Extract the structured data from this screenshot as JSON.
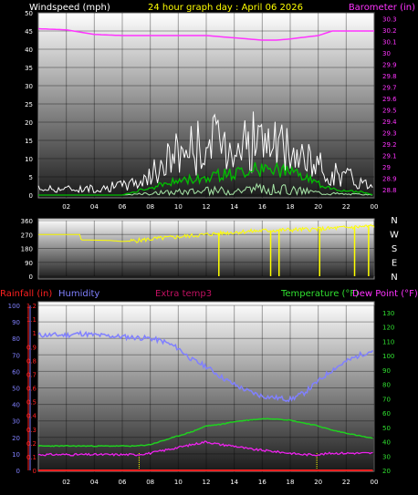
{
  "chart_data": [
    {
      "type": "line",
      "title": "24 hour graph day : April 06 2026",
      "ylabel_left": "Windspeed (mph)",
      "ylabel_right": "Barometer (in)",
      "x_ticks": [
        "02",
        "04",
        "06",
        "08",
        "10",
        "12",
        "14",
        "16",
        "18",
        "20",
        "22",
        "00"
      ],
      "y_left_ticks": [
        "0",
        "5",
        "10",
        "15",
        "20",
        "25",
        "30",
        "35",
        "40",
        "45",
        "50"
      ],
      "y_left_range": [
        0,
        50
      ],
      "y_right_ticks": [
        "28.8",
        "28.9",
        "29",
        "29.1",
        "29.2",
        "29.3",
        "29.4",
        "29.5",
        "29.6",
        "29.7",
        "29.8",
        "29.9",
        "30",
        "30.1",
        "30.2",
        "30.3"
      ],
      "y_right_range": [
        28.75,
        30.35
      ],
      "colors": {
        "gust": "#ffffff",
        "wind": "#00c000",
        "wind_low": "#a8e8a8",
        "barometer": "#ff33ff",
        "label_left": "#ffffff",
        "label_right": "#ff33ff",
        "title": "#ffff00"
      },
      "series": [
        {
          "key": "barometer",
          "axis": "right",
          "hours": [
            0,
            2,
            4,
            6,
            8,
            10,
            12,
            14,
            16,
            17,
            18,
            20,
            21,
            22,
            24
          ],
          "values": [
            30.21,
            30.2,
            30.16,
            30.15,
            30.15,
            30.15,
            30.15,
            30.13,
            30.11,
            30.11,
            30.12,
            30.15,
            30.19,
            30.19,
            30.19
          ]
        },
        {
          "key": "gust",
          "axis": "left",
          "hours": [
            0,
            2,
            4,
            6,
            7,
            8,
            9,
            10,
            12,
            14,
            15,
            16,
            17,
            18,
            19,
            20,
            21,
            22,
            23,
            24
          ],
          "values": [
            2,
            2,
            2,
            3,
            4,
            6,
            10,
            14,
            16,
            17,
            17,
            17,
            15,
            13,
            11,
            9,
            7,
            6,
            4,
            3
          ]
        },
        {
          "key": "wind",
          "axis": "left",
          "hours": [
            0,
            4,
            6,
            7,
            8,
            9,
            10,
            12,
            14,
            15,
            16,
            17,
            18,
            19,
            20,
            21,
            22,
            23,
            24
          ],
          "values": [
            0,
            0,
            0,
            1,
            2,
            3,
            4,
            5,
            6,
            7,
            7,
            7,
            6,
            5,
            3,
            2,
            1,
            1,
            0
          ]
        }
      ]
    },
    {
      "type": "line",
      "right_labels": [
        "N",
        "W",
        "S",
        "E",
        "N"
      ],
      "y_ticks": [
        "0",
        "90",
        "180",
        "270",
        "360"
      ],
      "y_range": [
        0,
        360
      ],
      "colors": {
        "direction": "#ffff00"
      },
      "series": [
        {
          "key": "direction",
          "hours": [
            0,
            3,
            3.05,
            5,
            6,
            7,
            8,
            10,
            12,
            14,
            16,
            18,
            20,
            22,
            23,
            24
          ],
          "values": [
            270,
            270,
            235,
            232,
            225,
            230,
            240,
            255,
            270,
            285,
            295,
            300,
            305,
            315,
            320,
            325
          ]
        }
      ],
      "drops": [
        {
          "hour": 12.9,
          "value": 0
        },
        {
          "hour": 16.6,
          "value": 0
        },
        {
          "hour": 17.2,
          "value": 0
        },
        {
          "hour": 20.1,
          "value": 0
        },
        {
          "hour": 22.6,
          "value": 0
        },
        {
          "hour": 23.6,
          "value": 0
        }
      ]
    },
    {
      "type": "line",
      "legend": [
        "Rainfall (in)",
        "Humidity",
        "Extra temp3",
        "Temperature (°F)",
        "Dew Point (°F)"
      ],
      "legend_colors": [
        "#ff2020",
        "#8080ff",
        "#c01060",
        "#30e030",
        "#ff33ff"
      ],
      "x_ticks": [
        "02",
        "04",
        "06",
        "08",
        "10",
        "12",
        "14",
        "16",
        "18",
        "20",
        "22",
        "00"
      ],
      "humidity_ticks": [
        "0",
        "10",
        "20",
        "30",
        "40",
        "50",
        "60",
        "70",
        "80",
        "90",
        "100"
      ],
      "humidity_range": [
        0,
        100
      ],
      "rain_ticks": [
        "0",
        "0.1",
        "0.2",
        "0.3",
        "0.4",
        "0.5",
        "0.6",
        "0.7",
        "0.8",
        "0.9",
        "1",
        "1.1",
        "1.2"
      ],
      "rain_range": [
        0,
        1.2
      ],
      "temp_ticks": [
        "20",
        "30",
        "40",
        "50",
        "60",
        "70",
        "80",
        "90",
        "100",
        "110",
        "120",
        "130"
      ],
      "temp_range": [
        20,
        135
      ],
      "colors": {
        "humidity": "#8080ff",
        "temperature": "#20d020",
        "dewpoint": "#ee22ee",
        "rain": "#ff2020",
        "marker": "#ffff00",
        "axis_left": "#ff2020",
        "axis_humidity": "#8080ff",
        "axis_right": "#30e030"
      },
      "series": [
        {
          "key": "humidity",
          "axis": "humidity",
          "hours": [
            0,
            2,
            3,
            4,
            6,
            8,
            9,
            10,
            11,
            12,
            13,
            14,
            15,
            16,
            17,
            18,
            19,
            20,
            21,
            22,
            23,
            24
          ],
          "values": [
            82,
            82,
            83,
            82,
            81,
            80,
            78,
            74,
            67,
            63,
            57,
            52,
            48,
            45,
            44,
            43,
            47,
            54,
            61,
            66,
            70,
            73
          ]
        },
        {
          "key": "temperature",
          "axis": "temp",
          "hours": [
            0,
            2,
            4,
            6,
            7,
            8,
            9,
            10,
            11,
            12,
            13,
            14,
            15,
            16,
            17,
            18,
            19,
            20,
            21,
            22,
            23,
            24
          ],
          "values": [
            37,
            37,
            37,
            37,
            37,
            38,
            41,
            44,
            47,
            51,
            52,
            54,
            55,
            56,
            56,
            55,
            53,
            51,
            48,
            46,
            44,
            42
          ]
        },
        {
          "key": "dewpoint",
          "axis": "temp",
          "hours": [
            0,
            2,
            4,
            6,
            7,
            8,
            9,
            10,
            11,
            12,
            13,
            14,
            15,
            16,
            17,
            18,
            19,
            20,
            21,
            22,
            23,
            24
          ],
          "values": [
            31,
            31,
            31,
            31,
            31,
            32,
            34,
            36,
            38,
            40,
            38,
            37,
            35,
            34,
            33,
            32,
            31,
            31,
            32,
            32,
            32,
            32
          ]
        },
        {
          "key": "rain",
          "axis": "rain",
          "hours": [
            0,
            24
          ],
          "values": [
            0,
            0
          ]
        }
      ],
      "markers": [
        7.2,
        19.9
      ]
    }
  ]
}
